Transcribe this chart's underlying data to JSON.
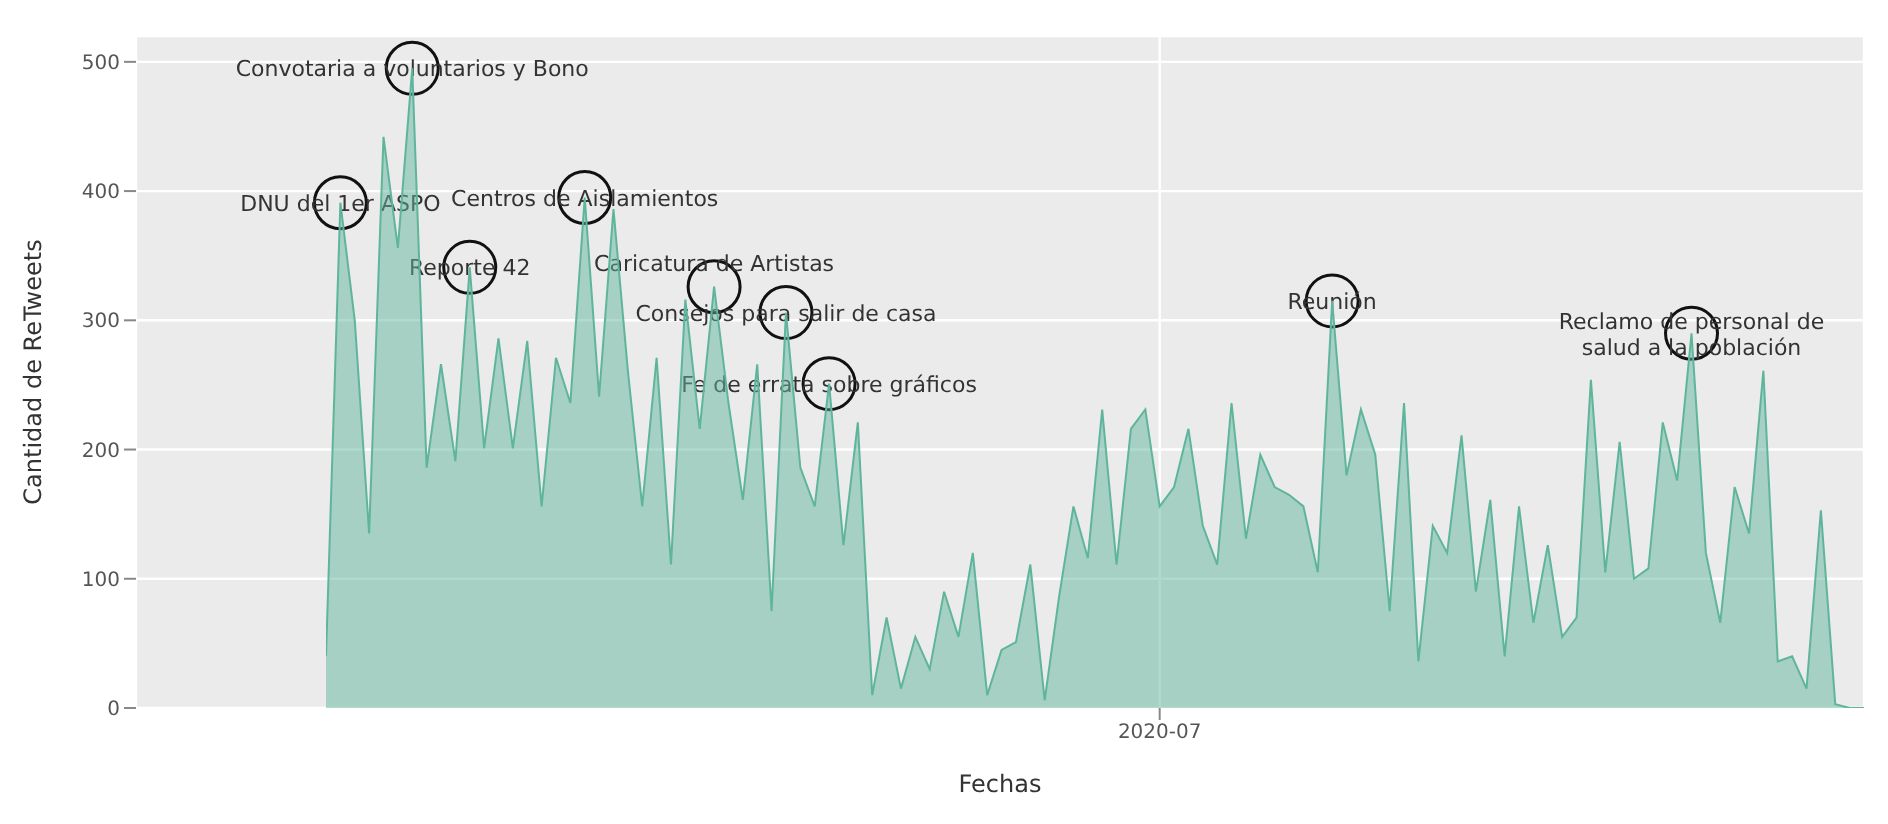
{
  "chart_data": {
    "type": "area",
    "xlabel": "Fechas",
    "ylabel": "Cantidad de ReTweets",
    "categories": [
      null,
      null,
      null,
      null,
      null,
      null,
      null,
      null,
      null,
      null,
      null,
      null,
      null,
      null,
      null,
      null,
      null,
      null,
      null,
      null,
      null,
      null,
      null,
      null,
      null,
      null,
      null,
      null,
      null,
      null,
      null,
      null,
      null,
      null,
      null,
      null,
      null,
      null,
      null,
      null,
      null,
      null,
      null,
      null,
      null,
      null,
      null,
      null,
      null,
      null,
      null,
      null,
      null,
      null,
      null,
      null,
      null,
      null,
      "2020-07",
      null,
      null,
      null,
      null,
      null,
      null,
      null,
      null,
      null,
      null,
      null,
      null,
      null,
      null,
      null,
      null,
      null,
      null,
      null,
      null,
      null,
      null,
      null,
      null,
      null,
      null,
      null,
      null,
      null,
      null,
      null,
      null,
      null,
      null,
      null,
      null,
      null,
      null,
      null,
      null,
      null,
      null,
      null,
      null,
      null,
      null,
      null,
      null,
      null
    ],
    "series": [
      {
        "color": "#5fb59c",
        "values": [
          40,
          391,
          300,
          135,
          442,
          356,
          495,
          186,
          266,
          191,
          341,
          201,
          286,
          201,
          284,
          156,
          271,
          236,
          395,
          241,
          386,
          261,
          156,
          271,
          111,
          316,
          216,
          326,
          236,
          161,
          266,
          75,
          306,
          186,
          156,
          251,
          126,
          221,
          10,
          70,
          15,
          55,
          30,
          90,
          55,
          120,
          10,
          45,
          51,
          111,
          6,
          86,
          156,
          116,
          231,
          111,
          216,
          231,
          156,
          171,
          216,
          141,
          111,
          236,
          131,
          196,
          171,
          165,
          156,
          105,
          315,
          180,
          231,
          196,
          75,
          236,
          36,
          141,
          120,
          211,
          90,
          161,
          40,
          156,
          66,
          126,
          55,
          70,
          254,
          105,
          206,
          100,
          108,
          221,
          176,
          290,
          120,
          66,
          171,
          135,
          261,
          36,
          40,
          15,
          153,
          3,
          0,
          0
        ]
      }
    ],
    "ylim": [
      0,
      520
    ],
    "yticks": [
      0,
      100,
      200,
      300,
      400,
      500
    ],
    "grid": true,
    "annotations": [
      {
        "text": "Convotaria a voluntarios y Bono",
        "y": 495
      },
      {
        "text": "DNU del 1er ASPO",
        "y": 391
      },
      {
        "text": "Centros de Aislamientos",
        "y": 395
      },
      {
        "text": "Reporte 42",
        "y": 341
      },
      {
        "text": "Caricatura de Artistas",
        "y": 326
      },
      {
        "text": "Consejos para salir de casa",
        "y": 306
      },
      {
        "text": "Fe de errata sobre gráficos",
        "y": 251
      },
      {
        "text": "Reunión",
        "y": 315
      },
      {
        "text": "Reclamo de personal de salud a la población",
        "y": 290
      }
    ]
  }
}
